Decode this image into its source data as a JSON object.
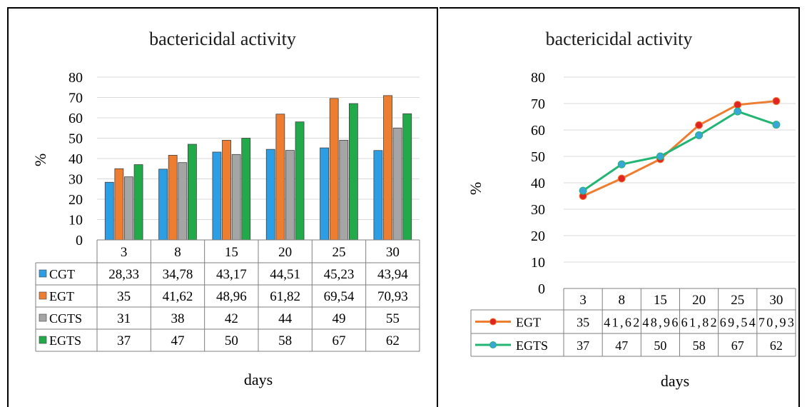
{
  "chart_data": [
    {
      "type": "bar",
      "title": "bactericidal activity",
      "xlabel": "days",
      "ylabel": "%",
      "ylim": [
        0,
        80
      ],
      "yticks": [
        "0",
        "10",
        "20",
        "30",
        "40",
        "50",
        "60",
        "70",
        "80"
      ],
      "categories": [
        "3",
        "8",
        "15",
        "20",
        "25",
        "30"
      ],
      "grid": true,
      "legend": "data table",
      "series": [
        {
          "name": "CGT",
          "color": "#2e9ee4",
          "values": [
            28.33,
            34.78,
            43.17,
            44.51,
            45.23,
            43.94
          ],
          "labels": [
            "28,33",
            "34,78",
            "43,17",
            "44,51",
            "45,23",
            "43,94"
          ]
        },
        {
          "name": "EGT",
          "color": "#ed7d31",
          "values": [
            35,
            41.62,
            48.96,
            61.82,
            69.54,
            70.93
          ],
          "labels": [
            "35",
            "41,62",
            "48,96",
            "61,82",
            "69,54",
            "70,93"
          ]
        },
        {
          "name": "CGTS",
          "color": "#a5a5a5",
          "values": [
            31,
            38,
            42,
            44,
            49,
            55
          ],
          "labels": [
            "31",
            "38",
            "42",
            "44",
            "49",
            "55"
          ]
        },
        {
          "name": "EGTS",
          "color": "#22a94a",
          "values": [
            37,
            47,
            50,
            58,
            67,
            62
          ],
          "labels": [
            "37",
            "47",
            "50",
            "58",
            "67",
            "62"
          ]
        }
      ]
    },
    {
      "type": "line",
      "title": "bactericidal activity",
      "xlabel": "days",
      "ylabel": "%",
      "ylim": [
        0,
        80
      ],
      "yticks": [
        "0",
        "10",
        "20",
        "30",
        "40",
        "50",
        "60",
        "70",
        "80"
      ],
      "categories": [
        "3",
        "8",
        "15",
        "20",
        "25",
        "30"
      ],
      "grid": true,
      "legend": "data table",
      "series": [
        {
          "name": "EGT",
          "color": "#ed7d31",
          "marker_color": "#e02424",
          "values": [
            35,
            41.62,
            48.96,
            61.82,
            69.54,
            70.93
          ],
          "labels": [
            "35",
            "41,62",
            "48,96",
            "61,82",
            "69,54",
            "70,93"
          ]
        },
        {
          "name": "EGTS",
          "color": "#22b573",
          "marker_color": "#3aa6d8",
          "values": [
            37,
            47,
            50,
            58,
            67,
            62
          ],
          "labels": [
            "37",
            "47",
            "50",
            "58",
            "67",
            "62"
          ]
        }
      ]
    }
  ]
}
